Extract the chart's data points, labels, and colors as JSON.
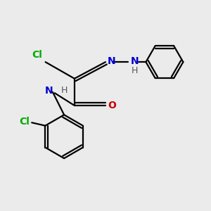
{
  "bg_color": "#ebebeb",
  "atom_colors": {
    "C": "#000000",
    "N": "#0000cc",
    "O": "#cc0000",
    "Cl": "#00aa00",
    "H": "#555555"
  },
  "bond_color": "#000000",
  "font_size_label": 10,
  "fig_size": [
    3.0,
    3.0
  ],
  "dpi": 100
}
